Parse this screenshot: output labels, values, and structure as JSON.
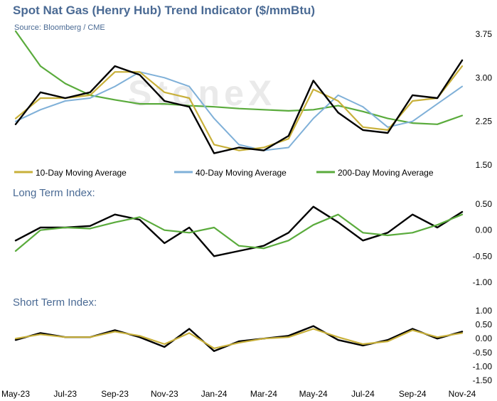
{
  "title": "Spot Nat Gas (Henry Hub) Trend Indicator ($/mmBtu)",
  "source": "Source: Bloomberg / CME",
  "watermark": "StoneX",
  "colors": {
    "title": "#4a6a94",
    "price": "#000000",
    "ma10": "#c8b03a",
    "ma40": "#7fb0d8",
    "ma200": "#5aab3c",
    "gridtext": "#000000"
  },
  "chart_data": [
    {
      "type": "line",
      "title": "Spot Nat Gas (Henry Hub) Trend Indicator ($/mmBtu)",
      "ylim": [
        1.5,
        3.75
      ],
      "yticks": [
        "3.75",
        "3.00",
        "2.25",
        "1.50"
      ],
      "ytick_values": [
        3.75,
        3.0,
        2.25,
        1.5
      ],
      "x": [
        "May-23",
        "Jun-23",
        "Jul-23",
        "Aug-23",
        "Sep-23",
        "Oct-23",
        "Nov-23",
        "Dec-23",
        "Jan-24",
        "Feb-24",
        "Mar-24",
        "Apr-24",
        "May-24",
        "Jun-24",
        "Jul-24",
        "Aug-24",
        "Sep-24",
        "Oct-24",
        "Nov-24"
      ],
      "series": [
        {
          "name": "",
          "color": "price",
          "values": [
            2.2,
            2.75,
            2.65,
            2.75,
            3.2,
            3.05,
            2.6,
            2.5,
            1.7,
            1.8,
            1.75,
            2.0,
            2.95,
            2.4,
            2.1,
            2.05,
            2.7,
            2.65,
            3.3
          ]
        },
        {
          "name": "10-Day Moving Average",
          "color": "ma10",
          "values": [
            2.3,
            2.65,
            2.65,
            2.7,
            3.1,
            3.1,
            2.75,
            2.65,
            1.85,
            1.75,
            1.8,
            1.95,
            2.8,
            2.6,
            2.15,
            2.1,
            2.6,
            2.65,
            3.2
          ]
        },
        {
          "name": "40-Day Moving Average",
          "color": "ma40",
          "values": [
            2.25,
            2.45,
            2.6,
            2.65,
            2.85,
            3.1,
            3.0,
            2.85,
            2.3,
            1.85,
            1.75,
            1.8,
            2.3,
            2.7,
            2.5,
            2.15,
            2.25,
            2.55,
            2.85
          ]
        },
        {
          "name": "200-Day Moving Average",
          "color": "ma200",
          "values": [
            3.8,
            3.2,
            2.9,
            2.7,
            2.62,
            2.55,
            2.55,
            2.52,
            2.5,
            2.47,
            2.45,
            2.43,
            2.45,
            2.52,
            2.42,
            2.3,
            2.22,
            2.2,
            2.35
          ]
        }
      ],
      "legend": [
        "10-Day Moving Average",
        "40-Day Moving Average",
        "200-Day Moving Average"
      ],
      "legend_position": "bottom"
    },
    {
      "type": "line",
      "title": "Long Term Index:",
      "ylim": [
        -1.0,
        0.5
      ],
      "yticks": [
        "0.50",
        "0.00",
        "-0.50",
        "-1.00"
      ],
      "ytick_values": [
        0.5,
        0.0,
        -0.5,
        -1.0
      ],
      "x": [
        "May-23",
        "Jun-23",
        "Jul-23",
        "Aug-23",
        "Sep-23",
        "Oct-23",
        "Nov-23",
        "Dec-23",
        "Jan-24",
        "Feb-24",
        "Mar-24",
        "Apr-24",
        "May-24",
        "Jun-24",
        "Jul-24",
        "Aug-24",
        "Sep-24",
        "Oct-24",
        "Nov-24"
      ],
      "series": [
        {
          "name": "",
          "color": "price",
          "values": [
            -0.2,
            0.05,
            0.05,
            0.08,
            0.3,
            0.2,
            -0.25,
            0.05,
            -0.5,
            -0.4,
            -0.3,
            -0.05,
            0.45,
            0.15,
            -0.2,
            -0.05,
            0.3,
            0.05,
            0.35
          ]
        },
        {
          "name": "",
          "color": "ma200",
          "values": [
            -0.4,
            0.0,
            0.05,
            0.03,
            0.15,
            0.25,
            0.0,
            -0.05,
            0.05,
            -0.3,
            -0.35,
            -0.2,
            0.1,
            0.3,
            -0.05,
            -0.1,
            -0.05,
            0.1,
            0.3
          ]
        }
      ]
    },
    {
      "type": "line",
      "title": "Short Term Index:",
      "ylim": [
        -1.5,
        1.0
      ],
      "yticks": [
        "1.00",
        "0.50",
        "0.00",
        "-0.50",
        "-1.00",
        "-1.50"
      ],
      "ytick_values": [
        1.0,
        0.5,
        0.0,
        -0.5,
        -1.0,
        -1.5
      ],
      "x": [
        "May-23",
        "Jun-23",
        "Jul-23",
        "Aug-23",
        "Sep-23",
        "Oct-23",
        "Nov-23",
        "Dec-23",
        "Jan-24",
        "Feb-24",
        "Mar-24",
        "Apr-24",
        "May-24",
        "Jun-24",
        "Jul-24",
        "Aug-24",
        "Sep-24",
        "Oct-24",
        "Nov-24"
      ],
      "series": [
        {
          "name": "",
          "color": "price",
          "values": [
            -0.05,
            0.2,
            0.05,
            0.05,
            0.3,
            0.05,
            -0.3,
            0.35,
            -0.45,
            -0.1,
            0.0,
            0.1,
            0.45,
            -0.05,
            -0.25,
            -0.05,
            0.35,
            0.0,
            0.25
          ]
        },
        {
          "name": "",
          "color": "ma10",
          "values": [
            0.0,
            0.15,
            0.05,
            0.05,
            0.25,
            0.1,
            -0.2,
            0.2,
            -0.35,
            -0.15,
            0.0,
            0.05,
            0.35,
            0.05,
            -0.2,
            -0.1,
            0.3,
            0.05,
            0.2
          ]
        }
      ]
    }
  ],
  "x_tick_labels": [
    "May-23",
    "Jul-23",
    "Sep-23",
    "Nov-23",
    "Jan-24",
    "Mar-24",
    "May-24",
    "Jul-24",
    "Sep-24",
    "Nov-24"
  ],
  "x_tick_index": [
    0,
    2,
    4,
    6,
    8,
    10,
    12,
    14,
    16,
    18
  ]
}
